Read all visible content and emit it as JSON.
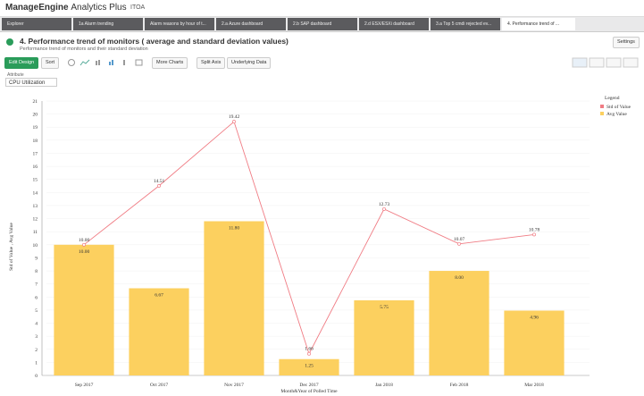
{
  "app": {
    "brand": "ManageEngine",
    "product": "Analytics Plus",
    "workspace": "ITOA"
  },
  "tabs": [
    "Explorer",
    "1a Alarm trending",
    "Alarm reasons by hour of t...",
    "2.a Azure dashboard",
    "2.b SAP dashboard",
    "2.d ESX/ESXi dashboard",
    "3.a Top 5 cmdi rejected ev...",
    "4. Performance trend of ..."
  ],
  "report": {
    "title": "4. Performance trend of monitors ( average and standard deviation values)",
    "subtitle": "Performance trend of monitors and their standard deviation",
    "settings": "Settings"
  },
  "toolbar": {
    "edit_design": "Edit Design",
    "sort": "Sort",
    "more_charts": "More Charts",
    "split_axis": "Split Axis",
    "underlying_data": "Underlying Data"
  },
  "filter": {
    "label": "Attribute",
    "value": "CPU Utilization"
  },
  "chart_data": {
    "type": "bar",
    "ylabel": "Std of Value , Avg Value",
    "xlabel": "Month&Year of Polled Time",
    "legend_title": "Legend",
    "legend": "right",
    "categories": [
      "Sep 2017",
      "Oct 2017",
      "Nov 2017",
      "Dec 2017",
      "Jan 2018",
      "Feb 2018",
      "Mar 2018"
    ],
    "series": [
      {
        "name": "Std of Value",
        "type": "line",
        "color": "#f07c84",
        "values": [
          10,
          14.51,
          19.42,
          1.66,
          12.73,
          10.07,
          10.78
        ],
        "value_labels": [
          "10.00",
          "14.51",
          "19.42",
          "1.66",
          "12.73",
          "10.07",
          "10.78"
        ]
      },
      {
        "name": "Avg Value",
        "type": "bar",
        "color": "#fcd05f",
        "values": [
          10,
          6.67,
          11.8,
          1.25,
          5.75,
          8,
          4.96
        ],
        "value_labels": [
          "10.00",
          "6.67",
          "11.80",
          "1.25",
          "5.75",
          "8.00",
          "4.96"
        ]
      }
    ],
    "ylim": [
      0,
      21
    ],
    "yticks": [
      0,
      1,
      2,
      3,
      4,
      5,
      6,
      7,
      8,
      9,
      10,
      11,
      12,
      13,
      14,
      15,
      16,
      17,
      18,
      19,
      20,
      21
    ],
    "grid": true
  }
}
